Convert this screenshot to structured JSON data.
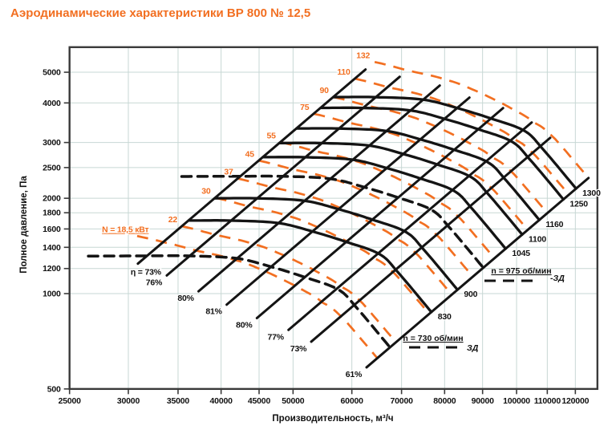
{
  "title": "Аэродинамические характеристики ВР 800 № 12,5",
  "colors": {
    "accent": "#f26f21",
    "curve": "#141414",
    "grid": "#c7d7d4",
    "axis": "#3a3a3a"
  },
  "chart_data": {
    "type": "line",
    "title": "Аэродинамические характеристики ВР 800 № 12,5",
    "xlabel": "Производительность, м³/ч",
    "ylabel": "Полное давление, Па",
    "log_x": true,
    "log_y": true,
    "x_range": [
      25000,
      128500
    ],
    "y_range": [
      500,
      6000
    ],
    "x_ticks": [
      25000,
      30000,
      35000,
      40000,
      45000,
      50000,
      60000,
      70000,
      80000,
      90000,
      100000,
      110000,
      120000
    ],
    "y_ticks": [
      500,
      1000,
      1200,
      1400,
      1600,
      1800,
      2000,
      2500,
      3000,
      4000,
      5000
    ],
    "grid": true,
    "reference_curve_1000rpm": {
      "eta_percent": [
        null,
        73,
        76,
        80,
        81,
        80,
        77,
        73,
        61
      ],
      "Q_m3h": [
        36300,
        43600,
        49700,
        57500,
        64000,
        71000,
        78800,
        83500,
        92500
      ],
      "P_Pa": [
        2465,
        2469,
        2468,
        2425,
        2280,
        2115,
        1933,
        1690,
        1270
      ]
    },
    "speed_curves": {
      "solid": [
        {
          "rpm": 830,
          "label": "830"
        },
        {
          "rpm": 900,
          "label": "900"
        },
        {
          "rpm": 1045,
          "label": "1045"
        },
        {
          "rpm": 1100,
          "label": "1100"
        },
        {
          "rpm": 1160,
          "label": "1160"
        },
        {
          "rpm": 1250,
          "label": "1250"
        },
        {
          "rpm": 1300,
          "label": "1300"
        }
      ],
      "dashed": [
        {
          "rpm": 730
        },
        {
          "rpm": 975
        }
      ]
    },
    "power_curves_kW": [
      {
        "kW": 18.5,
        "label": "N = 18,5 кВт"
      },
      {
        "kW": 22,
        "label": "22"
      },
      {
        "kW": 30,
        "label": "30"
      },
      {
        "kW": 37,
        "label": "37"
      },
      {
        "kW": 45,
        "label": "45"
      },
      {
        "kW": 55,
        "label": "55"
      },
      {
        "kW": 75,
        "label": "75"
      },
      {
        "kW": 90,
        "label": "90"
      },
      {
        "kW": 110,
        "label": "110"
      },
      {
        "kW": 132,
        "label": "132"
      }
    ],
    "efficiency_lines": [
      {
        "label": "η = 73%",
        "Q": 30900,
        "P": 1243,
        "Q_top": 62600
      },
      {
        "label": "76%",
        "Q": 33800,
        "P": 1141,
        "Q_top": 69600
      },
      {
        "label": "80%",
        "Q": 37300,
        "P": 1017,
        "Q_top": 78800
      },
      {
        "label": "81%",
        "Q": 40700,
        "P": 923,
        "Q_top": 86400
      },
      {
        "label": "80%",
        "Q": 44700,
        "P": 837,
        "Q_top": 95900
      },
      {
        "label": "77%",
        "Q": 49300,
        "P": 768,
        "Q_top": 104800
      },
      {
        "label": "73%",
        "Q": 52900,
        "P": 705,
        "Q_top": 111000
      },
      {
        "label": "61%",
        "Q": 62800,
        "P": 585,
        "Q_top": 125000
      }
    ],
    "annotations": {
      "n975": {
        "text": "n = 975 об/мин",
        "suffix": "-ЗД"
      },
      "n730": {
        "text": "n = 730 об/мин",
        "suffix": "ЗД"
      }
    }
  }
}
